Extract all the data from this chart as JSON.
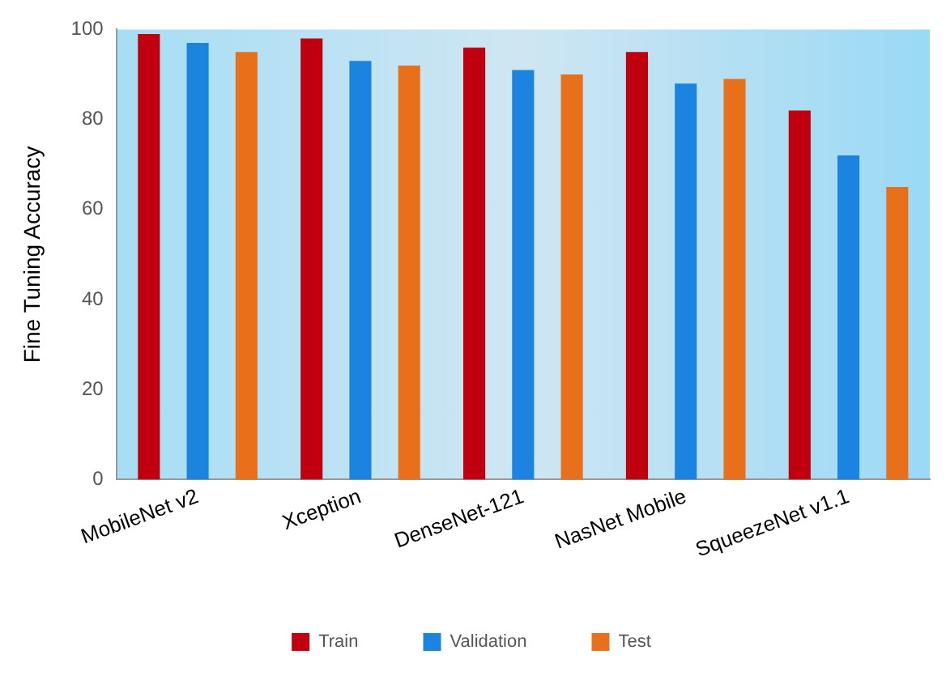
{
  "chart_data": {
    "type": "bar",
    "ylabel": "Fine Tuning Accuracy",
    "categories": [
      "MobileNet v2",
      "Xception",
      "DenseNet-121",
      "NasNet Mobile",
      "SqueezeNet v1.1"
    ],
    "series": [
      {
        "name": "Train",
        "color": "#c0000f",
        "values": [
          99,
          98,
          96,
          95,
          82
        ]
      },
      {
        "name": "Validation",
        "color": "#1a84e0",
        "values": [
          97,
          93,
          91,
          88,
          72
        ]
      },
      {
        "name": "Test",
        "color": "#e8701a",
        "values": [
          95,
          92,
          90,
          89,
          65
        ]
      }
    ],
    "ylim": [
      0,
      100
    ],
    "yticks": [
      0,
      20,
      40,
      60,
      80,
      100
    ],
    "grid": false,
    "legend": "bottom"
  }
}
